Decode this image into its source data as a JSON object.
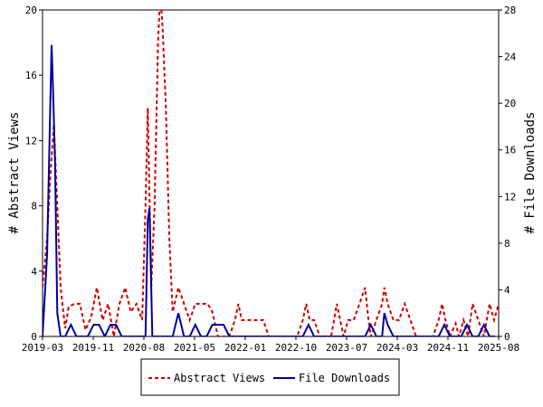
{
  "chart_data": {
    "type": "line",
    "title": "",
    "xlabel": "",
    "ylabel_left": "# Abstract Views",
    "ylabel_right": "# File Downloads",
    "x_ticks": [
      "2019-03",
      "2019-11",
      "2020-08",
      "2021-05",
      "2022-01",
      "2022-10",
      "2023-07",
      "2024-03",
      "2024-11",
      "2025-08"
    ],
    "y_left": {
      "min": 0,
      "max": 20,
      "ticks": [
        "0",
        "4",
        "8",
        "12",
        "16",
        "20"
      ]
    },
    "y_right": {
      "min": 0,
      "max": 28,
      "ticks": [
        "0",
        "4",
        "8",
        "12",
        "16",
        "20",
        "24",
        "28"
      ]
    },
    "legend_position": "bottom",
    "grid": false,
    "series": [
      {
        "name": "Abstract Views",
        "axis": "left",
        "color": "#cc0000",
        "style": "dashed",
        "points": [
          [
            0,
            3
          ],
          [
            0.4,
            6
          ],
          [
            0.7,
            10
          ],
          [
            1,
            13
          ],
          [
            1.3,
            8
          ],
          [
            1.6,
            3
          ],
          [
            2,
            0.5
          ],
          [
            2.3,
            1.8
          ],
          [
            2.8,
            2
          ],
          [
            3.3,
            2
          ],
          [
            3.8,
            0.4
          ],
          [
            4.3,
            1.2
          ],
          [
            4.8,
            3
          ],
          [
            5.3,
            1
          ],
          [
            5.8,
            2
          ],
          [
            6.3,
            0
          ],
          [
            6.8,
            2
          ],
          [
            7.3,
            3
          ],
          [
            7.8,
            1.5
          ],
          [
            8.3,
            2
          ],
          [
            8.8,
            1
          ],
          [
            9.1,
            8
          ],
          [
            9.3,
            14
          ],
          [
            9.6,
            3
          ],
          [
            9.9,
            8
          ],
          [
            10.2,
            18
          ],
          [
            10.4,
            21
          ],
          [
            10.6,
            19
          ],
          [
            10.9,
            14
          ],
          [
            11.2,
            6
          ],
          [
            11.5,
            1.5
          ],
          [
            12,
            3
          ],
          [
            12.5,
            2
          ],
          [
            13,
            1
          ],
          [
            13.5,
            2
          ],
          [
            14,
            2
          ],
          [
            14.6,
            2
          ],
          [
            15,
            1.5
          ],
          [
            15.5,
            0
          ],
          [
            16,
            0
          ],
          [
            16.5,
            0
          ],
          [
            17,
            1
          ],
          [
            17.3,
            2
          ],
          [
            17.6,
            1
          ],
          [
            18,
            1
          ],
          [
            18.5,
            1
          ],
          [
            19,
            1
          ],
          [
            19.5,
            1
          ],
          [
            20,
            0
          ],
          [
            20.5,
            0
          ],
          [
            21,
            0
          ],
          [
            21.5,
            0
          ],
          [
            22,
            0
          ],
          [
            22.5,
            0
          ],
          [
            23,
            1
          ],
          [
            23.3,
            2
          ],
          [
            23.6,
            1
          ],
          [
            24,
            1
          ],
          [
            24.5,
            0
          ],
          [
            25,
            0
          ],
          [
            25.5,
            0
          ],
          [
            26,
            2
          ],
          [
            26.3,
            1
          ],
          [
            26.6,
            0
          ],
          [
            27,
            1
          ],
          [
            27.5,
            1
          ],
          [
            28,
            2
          ],
          [
            28.5,
            3
          ],
          [
            28.8,
            1
          ],
          [
            29,
            0
          ],
          [
            29.5,
            1
          ],
          [
            30,
            2
          ],
          [
            30.2,
            3
          ],
          [
            30.5,
            2
          ],
          [
            31,
            1
          ],
          [
            31.5,
            1
          ],
          [
            32,
            2
          ],
          [
            32.5,
            1
          ],
          [
            33,
            0
          ],
          [
            33.5,
            0
          ],
          [
            34,
            0
          ],
          [
            34.5,
            0
          ],
          [
            35,
            1
          ],
          [
            35.3,
            2
          ],
          [
            35.6,
            1
          ],
          [
            36,
            0
          ],
          [
            36.5,
            0.8
          ],
          [
            36.8,
            0
          ],
          [
            37.2,
            1
          ],
          [
            37.6,
            0
          ],
          [
            38,
            2
          ],
          [
            38.5,
            1
          ],
          [
            39,
            0
          ],
          [
            39.5,
            2
          ],
          [
            39.9,
            1
          ],
          [
            40.3,
            2
          ]
        ]
      },
      {
        "name": "File Downloads",
        "axis": "right",
        "color": "#000099",
        "style": "solid",
        "points": [
          [
            0,
            0
          ],
          [
            0.4,
            7
          ],
          [
            0.8,
            25
          ],
          [
            0.9,
            22
          ],
          [
            1.1,
            15
          ],
          [
            1.3,
            2
          ],
          [
            1.6,
            0
          ],
          [
            2,
            0
          ],
          [
            2.5,
            1
          ],
          [
            3,
            0
          ],
          [
            3.5,
            0
          ],
          [
            4,
            0
          ],
          [
            4.5,
            1
          ],
          [
            5,
            1
          ],
          [
            5.5,
            0
          ],
          [
            6,
            1
          ],
          [
            6.5,
            1
          ],
          [
            7,
            0
          ],
          [
            7.5,
            0
          ],
          [
            8,
            0
          ],
          [
            8.5,
            0
          ],
          [
            9.1,
            0
          ],
          [
            9.3,
            10
          ],
          [
            9.45,
            11
          ],
          [
            9.7,
            0
          ],
          [
            10,
            0
          ],
          [
            10.5,
            0
          ],
          [
            11,
            0
          ],
          [
            11.5,
            0
          ],
          [
            12,
            2
          ],
          [
            12.5,
            0
          ],
          [
            13,
            0
          ],
          [
            13.5,
            1
          ],
          [
            14,
            0
          ],
          [
            14.5,
            0
          ],
          [
            15,
            1
          ],
          [
            15.5,
            1
          ],
          [
            16,
            1
          ],
          [
            16.5,
            0
          ],
          [
            17,
            0
          ],
          [
            17.5,
            0
          ],
          [
            18,
            0
          ],
          [
            18.5,
            0
          ],
          [
            19,
            0
          ],
          [
            19.5,
            0
          ],
          [
            20,
            0
          ],
          [
            20.5,
            0
          ],
          [
            21,
            0
          ],
          [
            21.5,
            0
          ],
          [
            22,
            0
          ],
          [
            22.5,
            0
          ],
          [
            23,
            0
          ],
          [
            23.5,
            1
          ],
          [
            24,
            0
          ],
          [
            24.5,
            0
          ],
          [
            25,
            0
          ],
          [
            25.5,
            0
          ],
          [
            26,
            0
          ],
          [
            26.5,
            0
          ],
          [
            27,
            0
          ],
          [
            27.5,
            0
          ],
          [
            28,
            0
          ],
          [
            28.5,
            0
          ],
          [
            29,
            1
          ],
          [
            29.5,
            0
          ],
          [
            30,
            0
          ],
          [
            30.2,
            2
          ],
          [
            30.5,
            1
          ],
          [
            31,
            0
          ],
          [
            31.5,
            0
          ],
          [
            32,
            0
          ],
          [
            32.5,
            0
          ],
          [
            33,
            0
          ],
          [
            33.5,
            0
          ],
          [
            34,
            0
          ],
          [
            34.5,
            0
          ],
          [
            35,
            0
          ],
          [
            35.5,
            1
          ],
          [
            36,
            0
          ],
          [
            36.5,
            0
          ],
          [
            37,
            0
          ],
          [
            37.5,
            1
          ],
          [
            38,
            0
          ],
          [
            38.5,
            0
          ],
          [
            39,
            1
          ],
          [
            39.5,
            0
          ],
          [
            40,
            0
          ]
        ]
      }
    ],
    "x_range": [
      0,
      40.3
    ]
  }
}
